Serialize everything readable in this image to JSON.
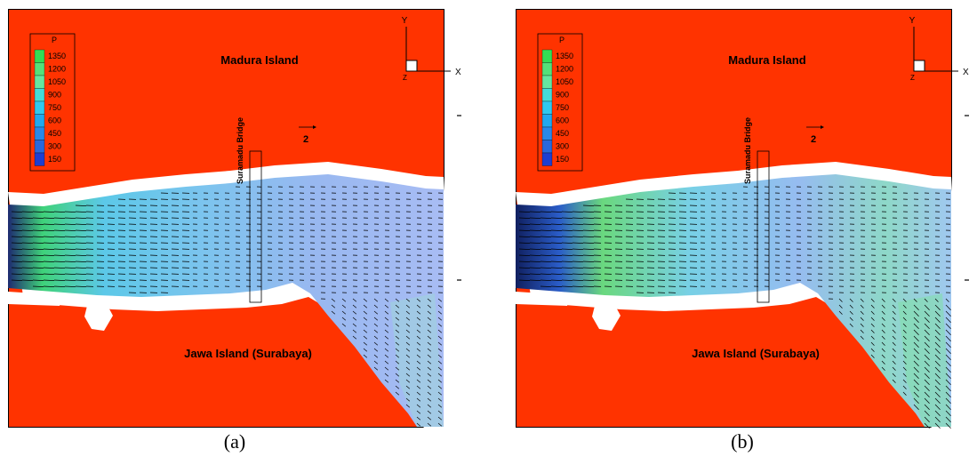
{
  "colors": {
    "land": "#ff3300",
    "water_light": "#a8c8f4",
    "water_mid": "#7ec8ec",
    "water_green": "#7ee89a",
    "water_deep": "#2050c8",
    "white": "#ffffff"
  },
  "legend": {
    "title": "P",
    "levels": [
      "1350",
      "1200",
      "1050",
      "900",
      "750",
      "600",
      "450",
      "300",
      "150"
    ],
    "level_colors": [
      "#33dd55",
      "#55e07a",
      "#66e6a0",
      "#44dcd8",
      "#30c8ee",
      "#22a8ee",
      "#2a88e8",
      "#2a68dc",
      "#1e3ed0"
    ]
  },
  "axes": {
    "y_label": "Y",
    "x_label": "X",
    "origin_label": "Z"
  },
  "labels": {
    "north_island": "Madura Island",
    "south_island": "Jawa Island (Surabaya)",
    "bridge": "Suramadu Bridge",
    "reference_vector": "2"
  },
  "panels": [
    {
      "id": "a",
      "caption": "(a)"
    },
    {
      "id": "b",
      "caption": "(b)"
    }
  ]
}
